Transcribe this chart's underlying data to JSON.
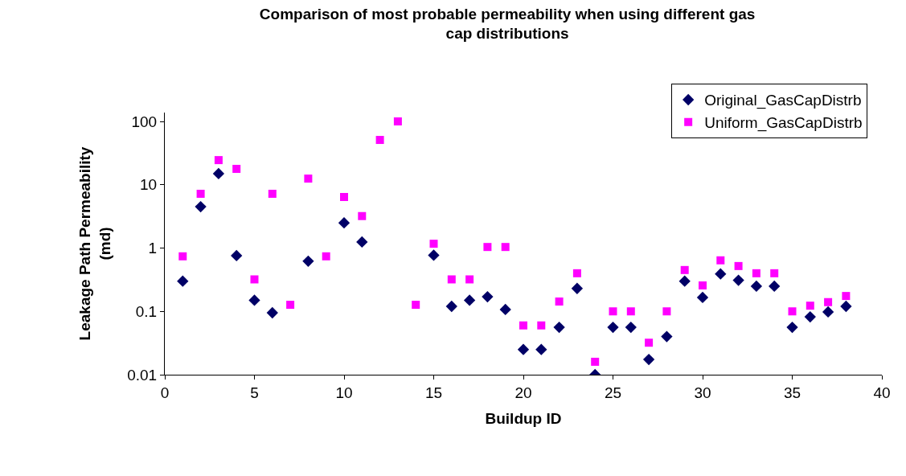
{
  "chart_data": {
    "type": "scatter",
    "title": "Comparison of most probable permeability when using different gas\ncap distributions",
    "xlabel": "Buildup ID",
    "ylabel": "Leakage Path Permeability\n(md)",
    "x": [
      1,
      2,
      3,
      4,
      5,
      6,
      7,
      8,
      9,
      10,
      11,
      12,
      13,
      14,
      15,
      16,
      17,
      18,
      19,
      20,
      21,
      22,
      23,
      24,
      25,
      26,
      27,
      28,
      29,
      30,
      31,
      32,
      33,
      34,
      35,
      36,
      37,
      38
    ],
    "series": [
      {
        "name": "Original_GasCapDistrb",
        "color": "#000066",
        "marker": "diamond",
        "values": [
          0.3,
          4.5,
          15,
          0.76,
          0.15,
          0.095,
          null,
          0.62,
          null,
          2.5,
          1.25,
          null,
          null,
          null,
          0.77,
          0.12,
          0.15,
          0.17,
          0.107,
          0.025,
          0.025,
          0.056,
          0.23,
          0.01,
          0.056,
          0.056,
          0.0174,
          0.04,
          0.3,
          0.166,
          0.39,
          0.31,
          0.25,
          0.25,
          0.056,
          0.082,
          0.098,
          0.12
        ]
      },
      {
        "name": "Uniform_GasCapDistrb",
        "color": "#ff00ff",
        "marker": "square",
        "values": [
          0.74,
          7.2,
          24.5,
          17.8,
          0.32,
          7.2,
          0.127,
          12.5,
          0.74,
          6.4,
          3.2,
          51,
          100,
          0.127,
          1.17,
          0.32,
          0.32,
          1.04,
          1.04,
          0.06,
          0.06,
          0.143,
          0.4,
          0.016,
          0.1,
          0.1,
          0.032,
          0.1,
          0.45,
          0.257,
          0.64,
          0.52,
          0.4,
          0.4,
          0.1,
          0.123,
          0.14,
          0.175
        ]
      }
    ],
    "log": "y",
    "xlim": [
      0,
      40
    ],
    "xticks": [
      0,
      5,
      10,
      15,
      20,
      25,
      30,
      35,
      40
    ],
    "ylim": [
      0.01,
      138
    ],
    "yticks": [
      0.01,
      0.1,
      1,
      10,
      100
    ],
    "legend": "top right"
  }
}
